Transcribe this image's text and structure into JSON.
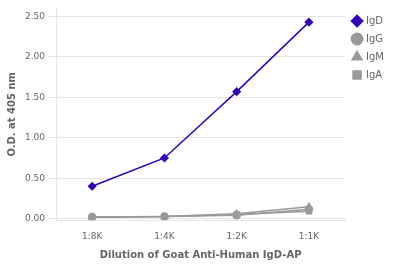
{
  "chart_data": {
    "type": "line",
    "categories": [
      "1:8K",
      "1:4K",
      "1:2K",
      "1:1K"
    ],
    "series": [
      {
        "name": "IgD",
        "color": "#3300BB",
        "marker": "diamond",
        "values": [
          0.4,
          0.75,
          1.57,
          2.43
        ]
      },
      {
        "name": "IgG",
        "color": "#999999",
        "marker": "circle",
        "values": [
          0.02,
          0.025,
          0.04,
          0.115
        ]
      },
      {
        "name": "IgM",
        "color": "#999999",
        "marker": "triangle",
        "values": [
          0.02,
          0.025,
          0.06,
          0.145
        ]
      },
      {
        "name": "IgA",
        "color": "#999999",
        "marker": "square",
        "values": [
          0.02,
          0.025,
          0.05,
          0.09
        ]
      }
    ],
    "xlabel": "Dilution of Goat Anti-Human IgD-AP",
    "ylabel": "O.D. at 405 nm",
    "ylim": [
      -0.02,
      2.6
    ],
    "yticks": [
      {
        "value": 0,
        "label": "0.00"
      },
      {
        "value": 0.5,
        "label": "0.50"
      },
      {
        "value": 1,
        "label": "1.00"
      },
      {
        "value": 1.5,
        "label": "1.50"
      },
      {
        "value": 2,
        "label": "2.00"
      },
      {
        "value": 2.5,
        "label": "2.50"
      }
    ],
    "grid": true,
    "legend": "right"
  }
}
